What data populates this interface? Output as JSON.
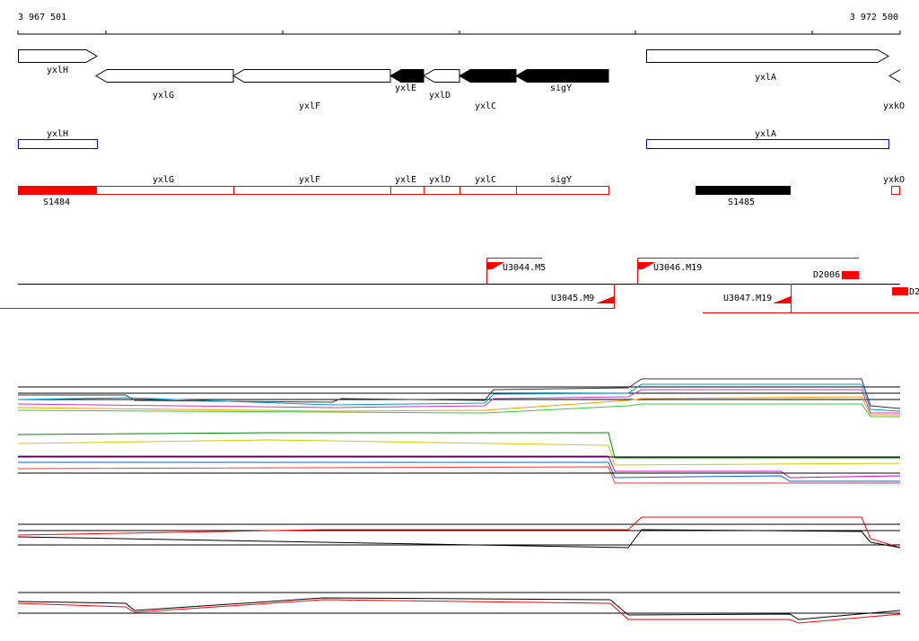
{
  "scale": {
    "start": "3 967 501",
    "end": "3 972 500"
  },
  "genes": [
    "yxlH",
    "yxlG",
    "yxlF",
    "yxlE",
    "yxlD",
    "yxlC",
    "sigY",
    "yxlA",
    "yxkO"
  ],
  "transcripts": [
    "yxlH",
    "yxlA"
  ],
  "segments": [
    "yxlG",
    "yxlF",
    "yxlE",
    "yxlD",
    "yxlC",
    "sigY",
    "yxkO",
    "S1484",
    "S1485"
  ],
  "probes": [
    "U3044.M5",
    "U3046.M19",
    "D2006",
    "U3045.M9",
    "U3047.M19",
    "D2"
  ]
}
